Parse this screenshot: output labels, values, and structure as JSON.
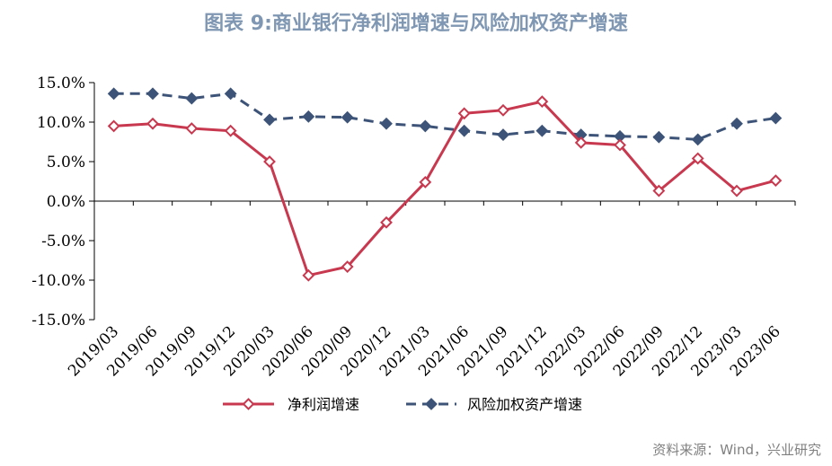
{
  "title": "图表 9:商业银行净利润增速与风险加权资产增速",
  "source": "资料来源：Wind，兴业研究",
  "chart_data": {
    "type": "line",
    "categories": [
      "2019/03",
      "2019/06",
      "2019/09",
      "2019/12",
      "2020/03",
      "2020/06",
      "2020/09",
      "2020/12",
      "2021/03",
      "2021/06",
      "2021/09",
      "2021/12",
      "2022/03",
      "2022/06",
      "2022/09",
      "2022/12",
      "2023/03",
      "2023/06"
    ],
    "ylim": [
      -15,
      15
    ],
    "yticks": [
      15,
      10,
      5,
      0,
      -5,
      -10,
      -15
    ],
    "ytick_labels": [
      "15.0%",
      "10.0%",
      "5.0%",
      "0.0%",
      "-5.0%",
      "-10.0%",
      "-15.0%"
    ],
    "series": [
      {
        "name": "净利润增速",
        "color": "#c8384e",
        "style": "solid",
        "values": [
          9.5,
          9.8,
          9.2,
          8.9,
          5.0,
          -9.4,
          -8.3,
          -2.7,
          2.4,
          11.1,
          11.5,
          12.6,
          7.4,
          7.1,
          1.3,
          5.4,
          1.3,
          2.6
        ]
      },
      {
        "name": "风险加权资产增速",
        "color": "#3d5478",
        "style": "dashed",
        "values": [
          13.6,
          13.6,
          13.0,
          13.6,
          10.3,
          10.7,
          10.6,
          9.8,
          9.5,
          8.9,
          8.4,
          8.9,
          8.4,
          8.2,
          8.1,
          7.8,
          9.8,
          10.5
        ]
      }
    ]
  }
}
